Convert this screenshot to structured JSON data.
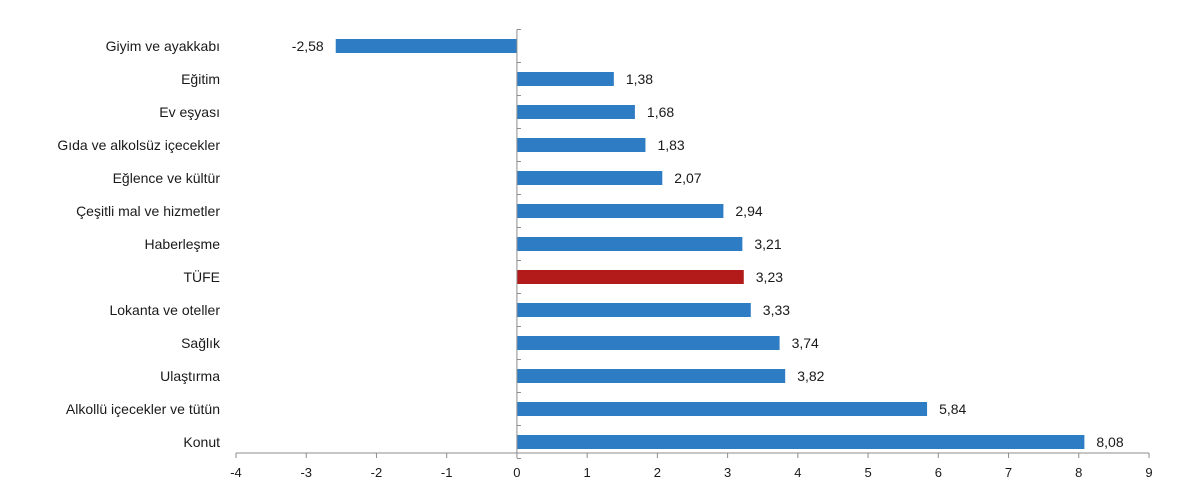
{
  "chart_data": {
    "type": "bar",
    "orientation": "horizontal",
    "categories": [
      "Giyim ve ayakkabı",
      "Eğitim",
      "Ev eşyası",
      "Gıda ve alkolsüz içecekler",
      "Eğlence ve kültür",
      "Çeşitli mal ve hizmetler",
      "Haberleşme",
      "TÜFE",
      "Lokanta ve oteller",
      "Sağlık",
      "Ulaştırma",
      "Alkollü içecekler ve tütün",
      "Konut"
    ],
    "values": [
      -2.58,
      1.38,
      1.68,
      1.83,
      2.07,
      2.94,
      3.21,
      3.23,
      3.33,
      3.74,
      3.82,
      5.84,
      8.08
    ],
    "value_labels": [
      "-2,58",
      "1,38",
      "1,68",
      "1,83",
      "2,07",
      "2,94",
      "3,21",
      "3,23",
      "3,33",
      "3,74",
      "3,82",
      "5,84",
      "8,08"
    ],
    "highlight_index": 7,
    "xlim": [
      -4,
      9
    ],
    "xticks": [
      -4,
      -3,
      -2,
      -1,
      0,
      1,
      2,
      3,
      4,
      5,
      6,
      7,
      8,
      9
    ],
    "title": "",
    "xlabel": "",
    "ylabel": "",
    "grid": false,
    "legend": "none",
    "colors": {
      "bar": "#2e7dc4",
      "highlight": "#b31b1b",
      "axis": "#8c8c8c"
    }
  }
}
